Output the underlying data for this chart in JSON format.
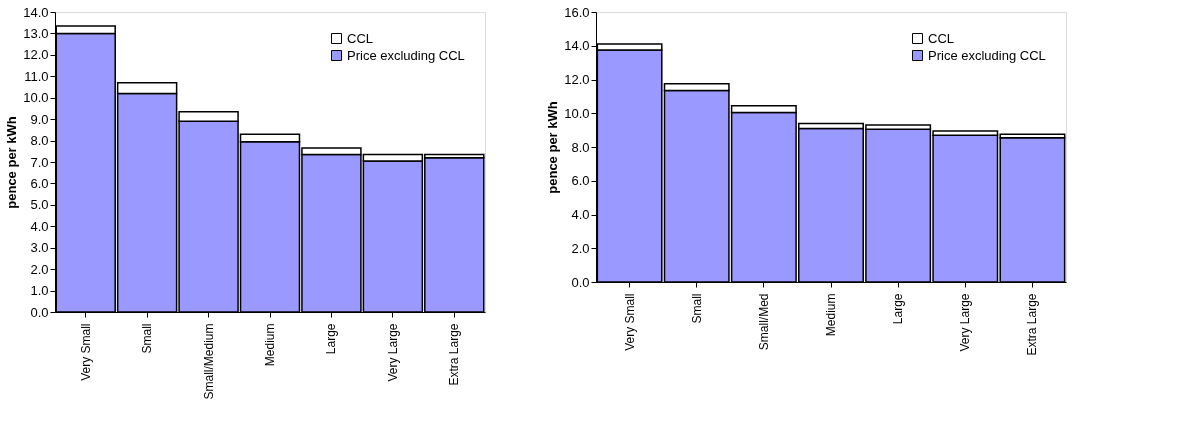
{
  "chart_data": [
    {
      "type": "bar",
      "stacked": true,
      "ylabel": "pence per kWh",
      "categories": [
        "Very Small",
        "Small",
        "Small/Medium",
        "Medium",
        "Large",
        "Very Large",
        "Extra Large"
      ],
      "series": [
        {
          "name": "Price excluding CCL",
          "color": "#9999ff",
          "values": [
            13.0,
            10.2,
            8.9,
            7.95,
            7.35,
            7.05,
            7.2
          ]
        },
        {
          "name": "CCL",
          "color": "#ffffff",
          "values": [
            0.35,
            0.5,
            0.45,
            0.35,
            0.3,
            0.3,
            0.15
          ]
        }
      ],
      "ylim": [
        0,
        14
      ],
      "yticks": [
        {
          "value": 0,
          "label": "0.0"
        },
        {
          "value": 1,
          "label": "1.0"
        },
        {
          "value": 2,
          "label": "2.0"
        },
        {
          "value": 3,
          "label": "3.0"
        },
        {
          "value": 4,
          "label": "4.0"
        },
        {
          "value": 5,
          "label": "5.0"
        },
        {
          "value": 6,
          "label": "6.0"
        },
        {
          "value": 7,
          "label": "7.0"
        },
        {
          "value": 8,
          "label": "8.0"
        },
        {
          "value": 9,
          "label": "9.0"
        },
        {
          "value": 10,
          "label": "10.0"
        },
        {
          "value": 11,
          "label": "11.0"
        },
        {
          "value": 12,
          "label": "12.0"
        },
        {
          "value": 13,
          "label": "13.0"
        },
        {
          "value": 14,
          "label": "14.0"
        }
      ],
      "grid": false,
      "legend": "top right"
    },
    {
      "type": "bar",
      "stacked": true,
      "ylabel": "pence per kWh",
      "categories": [
        "Very Small",
        "Small",
        "Small/Med",
        "Medium",
        "Large",
        "Very Large",
        "Extra Large"
      ],
      "series": [
        {
          "name": "Price excluding CCL",
          "color": "#9999ff",
          "values": [
            13.75,
            11.35,
            10.05,
            9.1,
            9.05,
            8.7,
            8.55
          ]
        },
        {
          "name": "CCL",
          "color": "#ffffff",
          "values": [
            0.35,
            0.4,
            0.4,
            0.3,
            0.25,
            0.25,
            0.2
          ]
        }
      ],
      "ylim": [
        0,
        16
      ],
      "yticks": [
        {
          "value": 0,
          "label": "0.0"
        },
        {
          "value": 2,
          "label": "2.0"
        },
        {
          "value": 4,
          "label": "4.0"
        },
        {
          "value": 6,
          "label": "6.0"
        },
        {
          "value": 8,
          "label": "8.0"
        },
        {
          "value": 10,
          "label": "10.0"
        },
        {
          "value": 12,
          "label": "12.0"
        },
        {
          "value": 14,
          "label": "14.0"
        },
        {
          "value": 16,
          "label": "16.0"
        }
      ],
      "grid": false,
      "legend": "top right"
    }
  ]
}
